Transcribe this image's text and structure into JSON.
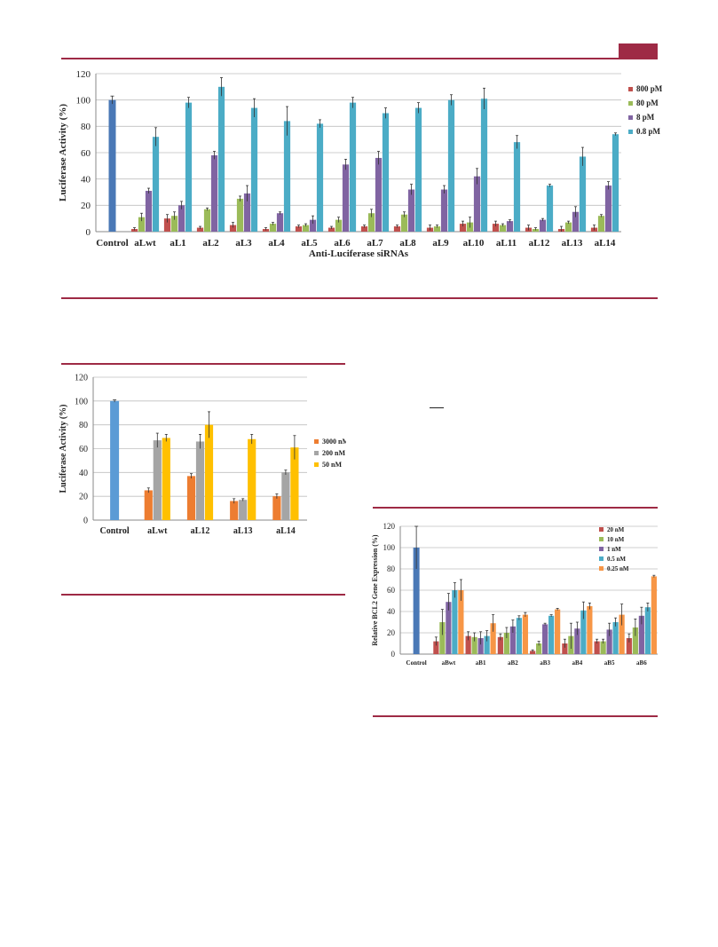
{
  "colors": {
    "rule": "#9e2a45",
    "control": "#4a78b6",
    "s800": "#c0504d",
    "s80": "#9bbb59",
    "s8": "#8064a2",
    "s08": "#4bacc6",
    "c2_control": "#5b9bd5",
    "c2_3000": "#ed7d31",
    "c2_200": "#a5a5a5",
    "c2_50": "#ffc000",
    "c3_25": "#f79646"
  },
  "chart_data": [
    {
      "type": "bar",
      "title": "",
      "xlabel": "Anti-Luciferase siRNAs",
      "ylabel": "Luciferase Activity (%)",
      "ylim": [
        0,
        120
      ],
      "yticks": [
        "0",
        "20",
        "40",
        "60",
        "80",
        "100",
        "120"
      ],
      "grid": true,
      "legend_position": "right",
      "control": {
        "label": "Control",
        "value": 100,
        "err": 3
      },
      "categories": [
        "aLwt",
        "aL1",
        "aL2",
        "aL3",
        "aL4",
        "aL5",
        "aL6",
        "aL7",
        "aL8",
        "aL9",
        "aL10",
        "aL11",
        "aL12",
        "aL13",
        "aL14"
      ],
      "series": [
        {
          "name": "800 pM",
          "values": [
            2,
            10,
            3,
            5,
            2,
            4,
            3,
            4,
            4,
            3,
            6,
            6,
            3,
            2,
            3
          ],
          "errors": [
            1,
            3,
            1,
            2,
            1,
            1,
            1,
            1,
            1,
            2,
            2,
            2,
            2,
            2,
            2
          ]
        },
        {
          "name": "80 pM",
          "values": [
            11,
            12,
            17,
            25,
            6,
            5,
            9,
            14,
            13,
            4,
            7,
            5,
            2,
            7,
            12
          ],
          "errors": [
            3,
            3,
            1,
            2,
            1,
            1,
            2,
            3,
            2,
            1,
            4,
            1,
            1,
            1,
            1
          ]
        },
        {
          "name": "8 pM",
          "values": [
            31,
            20,
            58,
            29,
            14,
            9,
            51,
            56,
            32,
            32,
            42,
            8,
            9,
            15,
            35
          ],
          "errors": [
            2,
            3,
            3,
            6,
            1,
            3,
            4,
            5,
            4,
            3,
            6,
            1,
            1,
            4,
            3
          ]
        },
        {
          "name": "0.8 pM",
          "values": [
            72,
            98,
            110,
            94,
            84,
            82,
            98,
            90,
            94,
            100,
            101,
            68,
            35,
            57,
            74
          ],
          "errors": [
            7,
            4,
            7,
            7,
            11,
            3,
            4,
            4,
            4,
            4,
            8,
            5,
            1,
            7,
            1
          ]
        }
      ]
    },
    {
      "type": "bar",
      "title": "",
      "xlabel": "",
      "ylabel": "Luciferase Activity (%)",
      "ylim": [
        0,
        120
      ],
      "yticks": [
        "0",
        "20",
        "40",
        "60",
        "80",
        "100",
        "120"
      ],
      "grid": true,
      "legend_position": "right",
      "control": {
        "label": "Control",
        "value": 100,
        "err": 1
      },
      "categories": [
        "aLwt",
        "aL12",
        "aL13",
        "aL14"
      ],
      "series": [
        {
          "name": "3000 nM",
          "values": [
            25,
            37,
            16,
            20
          ],
          "errors": [
            2,
            2,
            2,
            2
          ]
        },
        {
          "name": "200 nM",
          "values": [
            67,
            66,
            17,
            40
          ],
          "errors": [
            6,
            6,
            1,
            2
          ]
        },
        {
          "name": "50 nM",
          "values": [
            69,
            80,
            68,
            61
          ],
          "errors": [
            3,
            11,
            4,
            10
          ]
        }
      ]
    },
    {
      "type": "bar",
      "title": "",
      "xlabel": "",
      "ylabel": "Relative BCL2 Gene Expression (%)",
      "ylim": [
        0,
        120
      ],
      "yticks": [
        "0",
        "20",
        "40",
        "60",
        "80",
        "100",
        "120"
      ],
      "grid": true,
      "legend_position": "top-right",
      "control": {
        "label": "Control",
        "value": 100,
        "err": 20
      },
      "categories": [
        "aBwt",
        "aB1",
        "aB2",
        "aB3",
        "aB4",
        "aB5",
        "aB6"
      ],
      "series": [
        {
          "name": "20 nM",
          "values": [
            12,
            17,
            16,
            3,
            10,
            12,
            15
          ],
          "errors": [
            4,
            4,
            3,
            1,
            4,
            2,
            4
          ]
        },
        {
          "name": "10 nM",
          "values": [
            30,
            16,
            20,
            10,
            17,
            12,
            25
          ],
          "errors": [
            12,
            4,
            5,
            2,
            12,
            2,
            8
          ]
        },
        {
          "name": "1 nM",
          "values": [
            49,
            15,
            26,
            28,
            24,
            23,
            36
          ],
          "errors": [
            8,
            6,
            6,
            1,
            6,
            6,
            8
          ]
        },
        {
          "name": "0.5 nM",
          "values": [
            60,
            17,
            34,
            36,
            41,
            30,
            44
          ],
          "errors": [
            7,
            5,
            2,
            1,
            8,
            4,
            4
          ]
        },
        {
          "name": "0.25 nM",
          "values": [
            60,
            29,
            37,
            42,
            45,
            37,
            73
          ],
          "errors": [
            10,
            8,
            2,
            1,
            3,
            10,
            1
          ]
        }
      ]
    }
  ]
}
